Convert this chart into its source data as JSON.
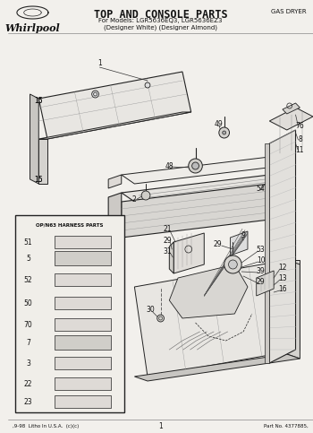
{
  "title_line1": "TOP AND CONSOLE PARTS",
  "title_line2": "For Models: LGR5636EQ3, LGR5636EZ3",
  "title_line3": "(Designer White) (Designer Almond)",
  "top_right_label": "GAS DRYER",
  "footer_left": ",9-98  Litho In U.S.A.  (c)(c)",
  "footer_center": "1",
  "footer_right": "Part No. 4377885,",
  "bg_color": "#f2f0ec",
  "line_color": "#222222",
  "text_color": "#111111",
  "harness_box_label": "OP/N63 HARNESS PARTS"
}
